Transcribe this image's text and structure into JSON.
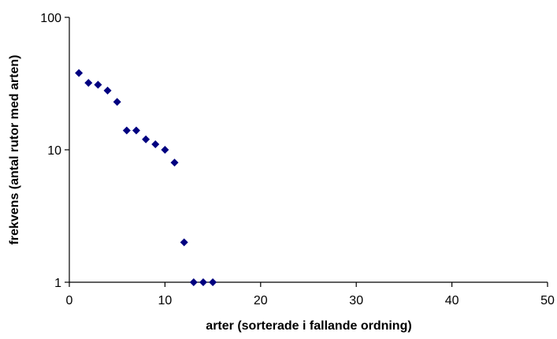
{
  "chart_data": {
    "type": "scatter",
    "title": "",
    "xlabel": "arter (sorterade i fallande ordning)",
    "ylabel": "frekvens (antal rutor med arten)",
    "xlim": [
      0,
      50
    ],
    "ylim": [
      1,
      100
    ],
    "yscale": "log",
    "grid": false,
    "legend": "none",
    "x_ticks": [
      "0",
      "10",
      "20",
      "30",
      "40",
      "50"
    ],
    "y_ticks": [
      "1",
      "10",
      "100"
    ],
    "marker": "diamond",
    "color": "#000080",
    "points": [
      {
        "x": 1,
        "y": 38
      },
      {
        "x": 2,
        "y": 32
      },
      {
        "x": 3,
        "y": 31
      },
      {
        "x": 4,
        "y": 28
      },
      {
        "x": 5,
        "y": 23
      },
      {
        "x": 6,
        "y": 14
      },
      {
        "x": 7,
        "y": 14
      },
      {
        "x": 8,
        "y": 12
      },
      {
        "x": 9,
        "y": 11
      },
      {
        "x": 10,
        "y": 10
      },
      {
        "x": 11,
        "y": 8
      },
      {
        "x": 12,
        "y": 2
      },
      {
        "x": 13,
        "y": 1
      },
      {
        "x": 14,
        "y": 1
      },
      {
        "x": 15,
        "y": 1
      }
    ]
  }
}
